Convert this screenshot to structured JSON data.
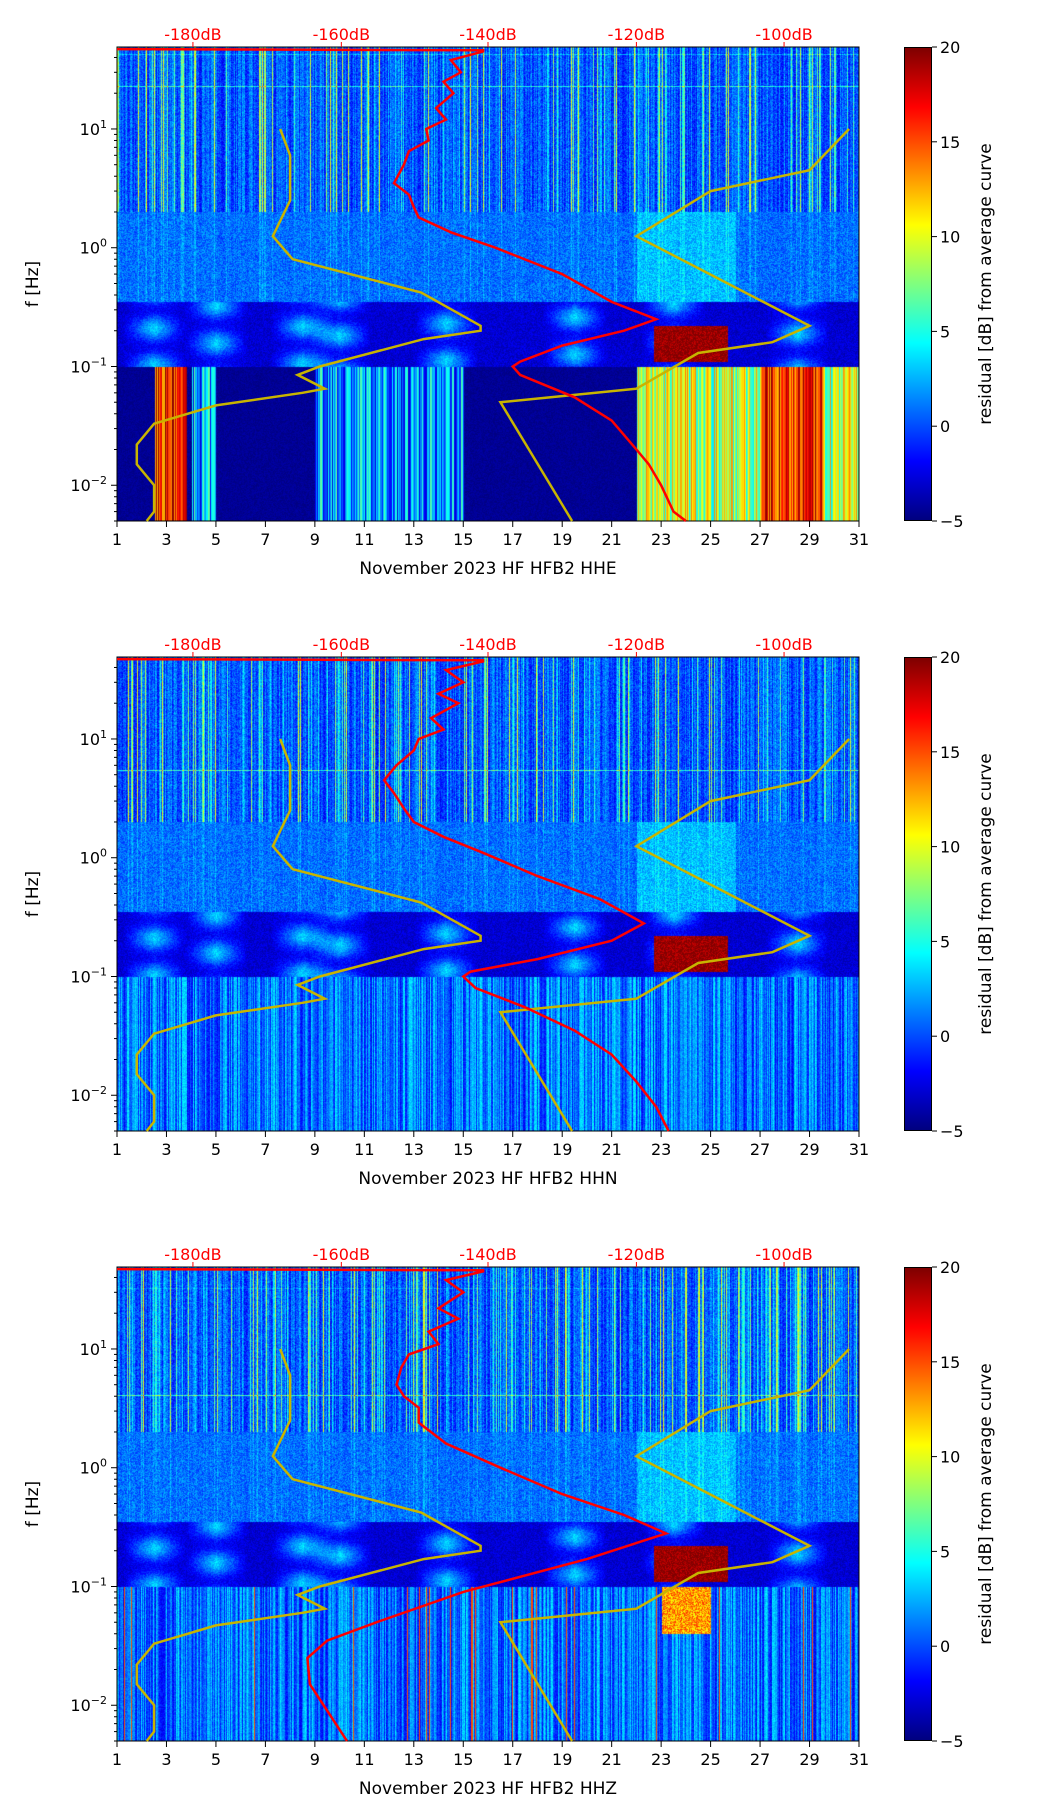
{
  "chart_data": {
    "type": "heatmap",
    "shared": {
      "x_ticks": [
        1,
        3,
        5,
        7,
        9,
        11,
        13,
        15,
        17,
        19,
        21,
        23,
        25,
        27,
        29,
        31
      ],
      "xlim": [
        1,
        31
      ],
      "ylim": [
        0.005,
        49
      ],
      "ylabel": "f [Hz]",
      "yscale": "log",
      "y_tick_labels": [
        {
          "v": 0.01,
          "base": "10",
          "exp": "−2"
        },
        {
          "v": 0.1,
          "base": "10",
          "exp": "−1"
        },
        {
          "v": 1,
          "base": "10",
          "exp": "0"
        },
        {
          "v": 10,
          "base": "10",
          "exp": "1"
        }
      ],
      "top_axis_labels": [
        {
          "day": 4.07,
          "label": "-180dB"
        },
        {
          "day": 10.07,
          "label": "-160dB"
        },
        {
          "day": 16.0,
          "label": "-140dB"
        },
        {
          "day": 22.0,
          "label": "-120dB"
        },
        {
          "day": 27.97,
          "label": "-100dB"
        }
      ],
      "colorbar": {
        "label": "residual [dB] from average curve",
        "range": [
          -5,
          20
        ],
        "ticks": [
          "20",
          "15",
          "10",
          "5",
          "0",
          "−5"
        ],
        "colormap": "jet"
      },
      "colors": {
        "red_curve": "#ff0000",
        "yellow_curve": "#c8b400",
        "top_label": "#ff0000"
      }
    },
    "plots": [
      {
        "xlabel": "November 2023 HF HFB2  HHE",
        "channel": "HHE",
        "yellow_curves": [
          [
            [
              7.6,
              10
            ],
            [
              8,
              6
            ],
            [
              8,
              2.5
            ],
            [
              7.3,
              1.25
            ],
            [
              8.1,
              0.8
            ],
            [
              13.3,
              0.42
            ],
            [
              15.7,
              0.22
            ],
            [
              15.7,
              0.2
            ],
            [
              13.4,
              0.17
            ],
            [
              9.2,
              0.1
            ],
            [
              8.3,
              0.085
            ],
            [
              9.4,
              0.065
            ],
            [
              8.5,
              0.06
            ],
            [
              5,
              0.047
            ],
            [
              2.5,
              0.033
            ],
            [
              1.8,
              0.022
            ],
            [
              1.8,
              0.015
            ],
            [
              2.5,
              0.01
            ],
            [
              2.5,
              0.006
            ],
            [
              2.2,
              0.005
            ]
          ],
          [
            [
              30.6,
              10
            ],
            [
              29,
              4.5
            ],
            [
              25,
              3
            ],
            [
              22,
              1.25
            ],
            [
              29,
              0.22
            ],
            [
              27.5,
              0.16
            ],
            [
              24.5,
              0.13
            ],
            [
              22,
              0.065
            ],
            [
              16.5,
              0.05
            ],
            [
              19.4,
              0.005
            ]
          ]
        ],
        "red_curve": [
          [
            1,
            47
          ],
          [
            15.8,
            46
          ],
          [
            15.8,
            45
          ],
          [
            14.5,
            38
          ],
          [
            14.9,
            30
          ],
          [
            14.2,
            25
          ],
          [
            14.6,
            20
          ],
          [
            13.9,
            15
          ],
          [
            14.3,
            12
          ],
          [
            13.5,
            10
          ],
          [
            13.6,
            8
          ],
          [
            12.8,
            6.5
          ],
          [
            12.6,
            5
          ],
          [
            12.2,
            3.5
          ],
          [
            12.8,
            2.8
          ],
          [
            13,
            2.2
          ],
          [
            13.2,
            1.8
          ],
          [
            14.5,
            1.35
          ],
          [
            16.3,
            1
          ],
          [
            19,
            0.6
          ],
          [
            21,
            0.35
          ],
          [
            22.8,
            0.25
          ],
          [
            21.5,
            0.2
          ],
          [
            19,
            0.15
          ],
          [
            17.3,
            0.11
          ],
          [
            17,
            0.1
          ],
          [
            17.3,
            0.085
          ],
          [
            19.5,
            0.055
          ],
          [
            21,
            0.035
          ],
          [
            22,
            0.02
          ],
          [
            22.5,
            0.015
          ],
          [
            23,
            0.01
          ],
          [
            23.5,
            0.006
          ],
          [
            24,
            0.005
          ]
        ]
      },
      {
        "xlabel": "November 2023 HF HFB2  HHN",
        "channel": "HHN",
        "yellow_curves": [
          [
            [
              7.6,
              10
            ],
            [
              8,
              6
            ],
            [
              8,
              2.5
            ],
            [
              7.3,
              1.25
            ],
            [
              8.1,
              0.8
            ],
            [
              13.3,
              0.42
            ],
            [
              15.7,
              0.22
            ],
            [
              15.7,
              0.2
            ],
            [
              13.4,
              0.17
            ],
            [
              9.2,
              0.1
            ],
            [
              8.3,
              0.085
            ],
            [
              9.4,
              0.065
            ],
            [
              8.5,
              0.06
            ],
            [
              5,
              0.047
            ],
            [
              2.5,
              0.033
            ],
            [
              1.8,
              0.022
            ],
            [
              1.8,
              0.015
            ],
            [
              2.5,
              0.01
            ],
            [
              2.5,
              0.006
            ],
            [
              2.2,
              0.005
            ]
          ],
          [
            [
              30.6,
              10
            ],
            [
              29,
              4.5
            ],
            [
              25,
              3
            ],
            [
              22,
              1.25
            ],
            [
              29,
              0.22
            ],
            [
              27.5,
              0.16
            ],
            [
              24.5,
              0.13
            ],
            [
              22,
              0.065
            ],
            [
              16.5,
              0.05
            ],
            [
              19.4,
              0.005
            ]
          ]
        ],
        "red_curve": [
          [
            1,
            47
          ],
          [
            15.8,
            46
          ],
          [
            15.8,
            45
          ],
          [
            14.3,
            38
          ],
          [
            15,
            30
          ],
          [
            14,
            24
          ],
          [
            14.8,
            20
          ],
          [
            13.7,
            15
          ],
          [
            14.2,
            12
          ],
          [
            13.2,
            10
          ],
          [
            13,
            8
          ],
          [
            12.3,
            6
          ],
          [
            11.8,
            4.5
          ],
          [
            12.2,
            3.5
          ],
          [
            12.6,
            2.6
          ],
          [
            13,
            2
          ],
          [
            14.2,
            1.5
          ],
          [
            15.8,
            1.1
          ],
          [
            18,
            0.7
          ],
          [
            20.5,
            0.45
          ],
          [
            22.3,
            0.28
          ],
          [
            21,
            0.2
          ],
          [
            18,
            0.14
          ],
          [
            15.3,
            0.11
          ],
          [
            15,
            0.1
          ],
          [
            15.5,
            0.08
          ],
          [
            17.5,
            0.055
          ],
          [
            19.5,
            0.035
          ],
          [
            21,
            0.022
          ],
          [
            22,
            0.013
          ],
          [
            22.8,
            0.008
          ],
          [
            23.3,
            0.005
          ]
        ]
      },
      {
        "xlabel": "November 2023 HF HFB2  HHZ",
        "channel": "HHZ",
        "yellow_curves": [
          [
            [
              7.6,
              10
            ],
            [
              8,
              6
            ],
            [
              8,
              2.5
            ],
            [
              7.3,
              1.25
            ],
            [
              8.1,
              0.8
            ],
            [
              13.3,
              0.42
            ],
            [
              15.7,
              0.22
            ],
            [
              15.7,
              0.2
            ],
            [
              13.4,
              0.17
            ],
            [
              9.2,
              0.1
            ],
            [
              8.3,
              0.085
            ],
            [
              9.4,
              0.065
            ],
            [
              8.5,
              0.06
            ],
            [
              5,
              0.047
            ],
            [
              2.5,
              0.033
            ],
            [
              1.8,
              0.022
            ],
            [
              1.8,
              0.015
            ],
            [
              2.5,
              0.01
            ],
            [
              2.5,
              0.006
            ],
            [
              2.2,
              0.005
            ]
          ],
          [
            [
              30.6,
              10
            ],
            [
              29,
              4.5
            ],
            [
              25,
              3
            ],
            [
              22,
              1.25
            ],
            [
              29,
              0.22
            ],
            [
              27.5,
              0.16
            ],
            [
              24.5,
              0.13
            ],
            [
              22,
              0.065
            ],
            [
              16.5,
              0.05
            ],
            [
              19.4,
              0.005
            ]
          ]
        ],
        "red_curve": [
          [
            1,
            47
          ],
          [
            15.8,
            46
          ],
          [
            15.8,
            45
          ],
          [
            14.3,
            38
          ],
          [
            15,
            30
          ],
          [
            14,
            22
          ],
          [
            14.8,
            18
          ],
          [
            13.6,
            14
          ],
          [
            14,
            11
          ],
          [
            12.8,
            9
          ],
          [
            12.5,
            7
          ],
          [
            12.3,
            5
          ],
          [
            12.6,
            4
          ],
          [
            13.2,
            3.2
          ],
          [
            13.2,
            2.4
          ],
          [
            14.3,
            1.6
          ],
          [
            16.5,
            1
          ],
          [
            19,
            0.6
          ],
          [
            21.5,
            0.4
          ],
          [
            23.2,
            0.28
          ],
          [
            20,
            0.17
          ],
          [
            15,
            0.09
          ],
          [
            11.5,
            0.05
          ],
          [
            9.5,
            0.035
          ],
          [
            8.7,
            0.025
          ],
          [
            8.8,
            0.015
          ],
          [
            9.5,
            0.009
          ],
          [
            10.3,
            0.005
          ]
        ]
      }
    ]
  }
}
